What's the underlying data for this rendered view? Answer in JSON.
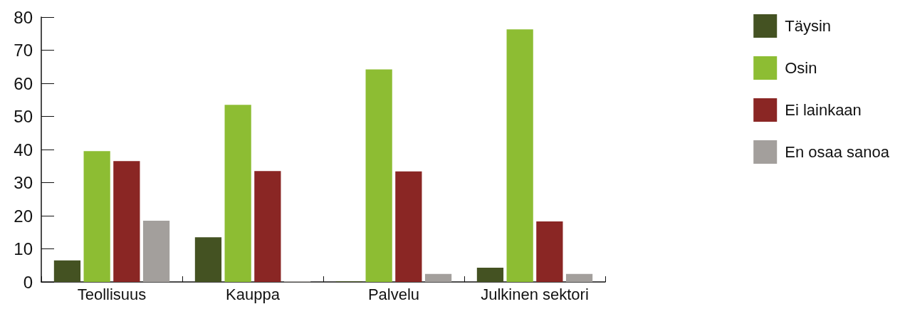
{
  "chart_data": {
    "type": "bar",
    "categories": [
      "Teollisuus",
      "Kauppa",
      "Palvelu",
      "Julkinen sektori"
    ],
    "series": [
      {
        "name": "Täysin",
        "color": "#445222",
        "values": [
          6.5,
          13.5,
          0.2,
          4.3
        ]
      },
      {
        "name": "Osin",
        "color": "#8dbd33",
        "values": [
          39.5,
          53.5,
          64.2,
          76.3
        ]
      },
      {
        "name": "Ei lainkaan",
        "color": "#8a2624",
        "values": [
          36.5,
          33.5,
          33.4,
          18.3
        ]
      },
      {
        "name": "En osaa sanoa",
        "color": "#a39f9c",
        "values": [
          18.5,
          0.2,
          2.4,
          2.4
        ]
      }
    ],
    "ylim": [
      0,
      80
    ],
    "yticks": [
      0,
      10,
      20,
      30,
      40,
      50,
      60,
      70,
      80
    ],
    "grid": false,
    "legend": "top right"
  }
}
